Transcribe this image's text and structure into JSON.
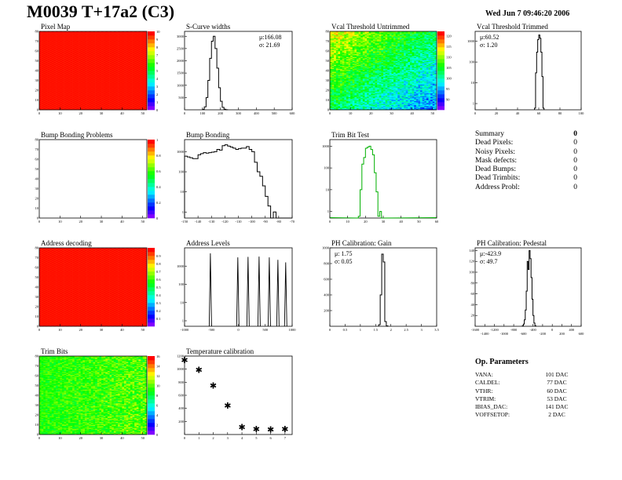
{
  "header": {
    "title": "M0039 T+17a2 (C3)",
    "date": "Wed Jun  7 09:46:20 2006"
  },
  "summary": {
    "title": "Summary",
    "total": "0",
    "rows": [
      {
        "label": "Dead Pixels:",
        "value": "0"
      },
      {
        "label": "Noisy Pixels:",
        "value": "0"
      },
      {
        "label": "Mask defects:",
        "value": "0"
      },
      {
        "label": "Dead Bumps:",
        "value": "0"
      },
      {
        "label": "Dead Trimbits:",
        "value": "0"
      },
      {
        "label": "Address Probl:",
        "value": "0"
      }
    ]
  },
  "op_parameters": {
    "title": "Op. Parameters",
    "rows": [
      {
        "label": "VANA:",
        "value": "101 DAC"
      },
      {
        "label": "CALDEL:",
        "value": "77 DAC"
      },
      {
        "label": "VTHR:",
        "value": "60 DAC"
      },
      {
        "label": "VTRIM:",
        "value": "53 DAC"
      },
      {
        "label": "IBIAS_DAC:",
        "value": "141 DAC"
      },
      {
        "label": "VOFFSETOP:",
        "value": "2 DAC"
      }
    ]
  },
  "colors": {
    "line": "#000000",
    "trim_test": "#00b000"
  },
  "chart_data": [
    {
      "id": "pixel_map",
      "type": "heatmap",
      "title": "Pixel Map",
      "xlim": [
        0,
        52
      ],
      "ylim": [
        0,
        80
      ],
      "zlim": [
        0,
        10
      ],
      "pattern": "uniform",
      "value": 10,
      "xticks": [
        0,
        10,
        20,
        30,
        40,
        50
      ],
      "yticks": [
        0,
        10,
        20,
        30,
        40,
        50,
        60,
        70,
        80
      ],
      "zticks": [
        0,
        1,
        2,
        3,
        4,
        5,
        6,
        7,
        8,
        9,
        10
      ]
    },
    {
      "id": "s_curve",
      "type": "hist",
      "title": "S-Curve widths",
      "xlim": [
        0,
        600
      ],
      "ylim": [
        0,
        3200
      ],
      "log": false,
      "bin_start": 100,
      "bin_width": 10,
      "counts": [
        20,
        120,
        500,
        1200,
        2100,
        2800,
        3000,
        2500,
        1700,
        900,
        350,
        100,
        25,
        5
      ],
      "stats": [
        "μ:166.08",
        "σ: 21.69"
      ],
      "xticks": [
        0,
        100,
        200,
        300,
        400,
        500,
        600
      ],
      "yticks": [
        500,
        1000,
        1500,
        2000,
        2500,
        3000
      ]
    },
    {
      "id": "vcal_untrimmed",
      "type": "heatmap",
      "title": "Vcal Threshold Untrimmed",
      "xlim": [
        0,
        52
      ],
      "ylim": [
        0,
        80
      ],
      "zlim": [
        85,
        122
      ],
      "pattern": "gradient",
      "value_range": [
        88,
        118
      ],
      "xticks": [
        0,
        10,
        20,
        30,
        40,
        50
      ],
      "yticks": [
        0,
        10,
        20,
        30,
        40,
        50,
        60,
        70,
        80
      ],
      "zticks": [
        90,
        95,
        100,
        105,
        110,
        115,
        120
      ]
    },
    {
      "id": "vcal_trimmed",
      "type": "hist",
      "title": "Vcal Threshold Trimmed",
      "xlim": [
        0,
        100
      ],
      "ylim": [
        0.5,
        3000
      ],
      "log": true,
      "bin_start": 56,
      "bin_width": 1,
      "counts": [
        0.6,
        30,
        300,
        1200,
        2000,
        1400,
        300,
        20,
        0.6
      ],
      "stats": [
        "μ:60.52",
        "σ: 1.20"
      ],
      "xticks": [
        0,
        20,
        40,
        60,
        80,
        100
      ],
      "yticks": [
        1,
        10,
        100,
        1000
      ]
    },
    {
      "id": "bump_problems",
      "type": "heatmap",
      "title": "Bump Bonding Problems",
      "xlim": [
        0,
        52
      ],
      "ylim": [
        0,
        80
      ],
      "zlim": [
        0,
        1
      ],
      "pattern": "empty",
      "xticks": [
        0,
        10,
        20,
        30,
        40,
        50
      ],
      "yticks": [
        0,
        10,
        20,
        30,
        40,
        50,
        60,
        70,
        80
      ],
      "zticks": [
        0,
        0.2,
        0.4,
        0.6,
        0.8,
        1
      ]
    },
    {
      "id": "bump_bonding",
      "type": "hist",
      "title": "Bump Bonding",
      "xlim": [
        -150,
        -70
      ],
      "ylim": [
        0.5,
        4000
      ],
      "log": true,
      "bin_start": -150,
      "bin_width": 2,
      "counts": [
        600,
        550,
        500,
        450,
        450,
        700,
        800,
        900,
        850,
        900,
        950,
        1000,
        1300,
        1200,
        2000,
        2200,
        1900,
        1700,
        1500,
        1300,
        1400,
        1500,
        1500,
        1800,
        1300,
        1000,
        300,
        100,
        60,
        20,
        6,
        2,
        0,
        1,
        0,
        0,
        0,
        0,
        0,
        0
      ],
      "xticks": [
        -150,
        -140,
        -130,
        -120,
        -110,
        -100,
        -90,
        -80,
        -70
      ],
      "yticks": [
        1,
        10,
        100,
        1000
      ]
    },
    {
      "id": "trim_bit_test",
      "type": "hist",
      "title": "Trim Bit Test",
      "xlim": [
        0,
        60
      ],
      "ylim": [
        0.5,
        2000
      ],
      "log": true,
      "bin_start": 16,
      "bin_width": 1,
      "color": "trim_test",
      "counts": [
        0.6,
        10,
        150,
        300,
        800,
        900,
        1000,
        700,
        400,
        60,
        8,
        0.6,
        1
      ],
      "xticks": [
        0,
        10,
        20,
        30,
        40,
        50,
        60
      ],
      "yticks": [
        1,
        10,
        100,
        1000
      ]
    },
    {
      "id": "address_decoding",
      "type": "heatmap",
      "title": "Address decoding",
      "xlim": [
        0,
        52
      ],
      "ylim": [
        0,
        80
      ],
      "zlim": [
        0,
        1
      ],
      "pattern": "uniform",
      "value": 1,
      "xticks": [
        0,
        10,
        20,
        30,
        40,
        50
      ],
      "yticks": [
        0,
        10,
        20,
        30,
        40,
        50,
        60,
        70,
        80
      ],
      "zticks": [
        0.1,
        0.2,
        0.3,
        0.4,
        0.5,
        0.6,
        0.7,
        0.8,
        0.9
      ]
    },
    {
      "id": "address_levels",
      "type": "spikes",
      "title": "Address Levels",
      "xlim": [
        -1000,
        1000
      ],
      "ylim": [
        0.5,
        10000
      ],
      "log": true,
      "peaks": [
        [
          -520,
          5000
        ],
        [
          -10,
          3000
        ],
        [
          180,
          3200
        ],
        [
          385,
          3300
        ],
        [
          575,
          3000
        ],
        [
          735,
          2200
        ],
        [
          880,
          1600
        ]
      ],
      "xticks": [
        -1000,
        -500,
        0,
        500,
        1000
      ],
      "yticks": [
        1,
        10,
        100,
        1000
      ]
    },
    {
      "id": "ph_gain",
      "type": "hist",
      "title": "PH Calibration: Gain",
      "xlim": [
        0,
        3.5
      ],
      "ylim": [
        0,
        1000
      ],
      "log": false,
      "bin_start": 1.6,
      "bin_width": 0.05,
      "counts": [
        20,
        400,
        920,
        820,
        60,
        5
      ],
      "stats": [
        "μ: 1.75",
        "σ: 0.05"
      ],
      "xticks": [
        0,
        0.5,
        1,
        1.5,
        2,
        2.5,
        3,
        3.5
      ],
      "yticks": [
        200,
        400,
        600,
        800,
        1000
      ]
    },
    {
      "id": "ph_pedestal",
      "type": "hist",
      "title": "PH Calibration: Pedestal",
      "xlim": [
        -1600,
        600
      ],
      "ylim": [
        0,
        145
      ],
      "log": false,
      "bin_start": -620,
      "bin_width": 20,
      "counts": [
        1,
        4,
        12,
        30,
        65,
        120,
        105,
        140,
        125,
        90,
        50,
        20,
        6,
        1
      ],
      "stats": [
        "μ:-423.9",
        "σ: 49.7"
      ],
      "xticks": [
        -1600,
        -1400,
        -1200,
        -1000,
        -800,
        -600,
        -400,
        -200,
        0,
        200,
        400,
        600
      ],
      "yticks": [
        20,
        40,
        60,
        80,
        100,
        120,
        140
      ]
    },
    {
      "id": "trim_bits",
      "type": "heatmap",
      "title": "Trim Bits",
      "xlim": [
        0,
        52
      ],
      "ylim": [
        0,
        80
      ],
      "zlim": [
        0,
        16
      ],
      "pattern": "noise",
      "value_range": [
        8,
        12
      ],
      "xticks": [
        0,
        10,
        20,
        30,
        40,
        50
      ],
      "yticks": [
        0,
        10,
        20,
        30,
        40,
        50,
        60,
        70,
        80
      ],
      "zticks": [
        0,
        2,
        4,
        6,
        8,
        10,
        12,
        14,
        16
      ]
    },
    {
      "id": "temperature_calibration",
      "type": "scatter",
      "title": "Temperature calibration",
      "xlim": [
        0,
        7.5
      ],
      "ylim": [
        0,
        1200
      ],
      "x": [
        0,
        1,
        2,
        3,
        4,
        5,
        6,
        7
      ],
      "y": [
        1130,
        980,
        740,
        430,
        100,
        70,
        65,
        70
      ],
      "xticks": [
        0,
        1,
        2,
        3,
        4,
        5,
        6,
        7
      ],
      "yticks": [
        200,
        400,
        600,
        800,
        1000,
        1200
      ]
    }
  ]
}
